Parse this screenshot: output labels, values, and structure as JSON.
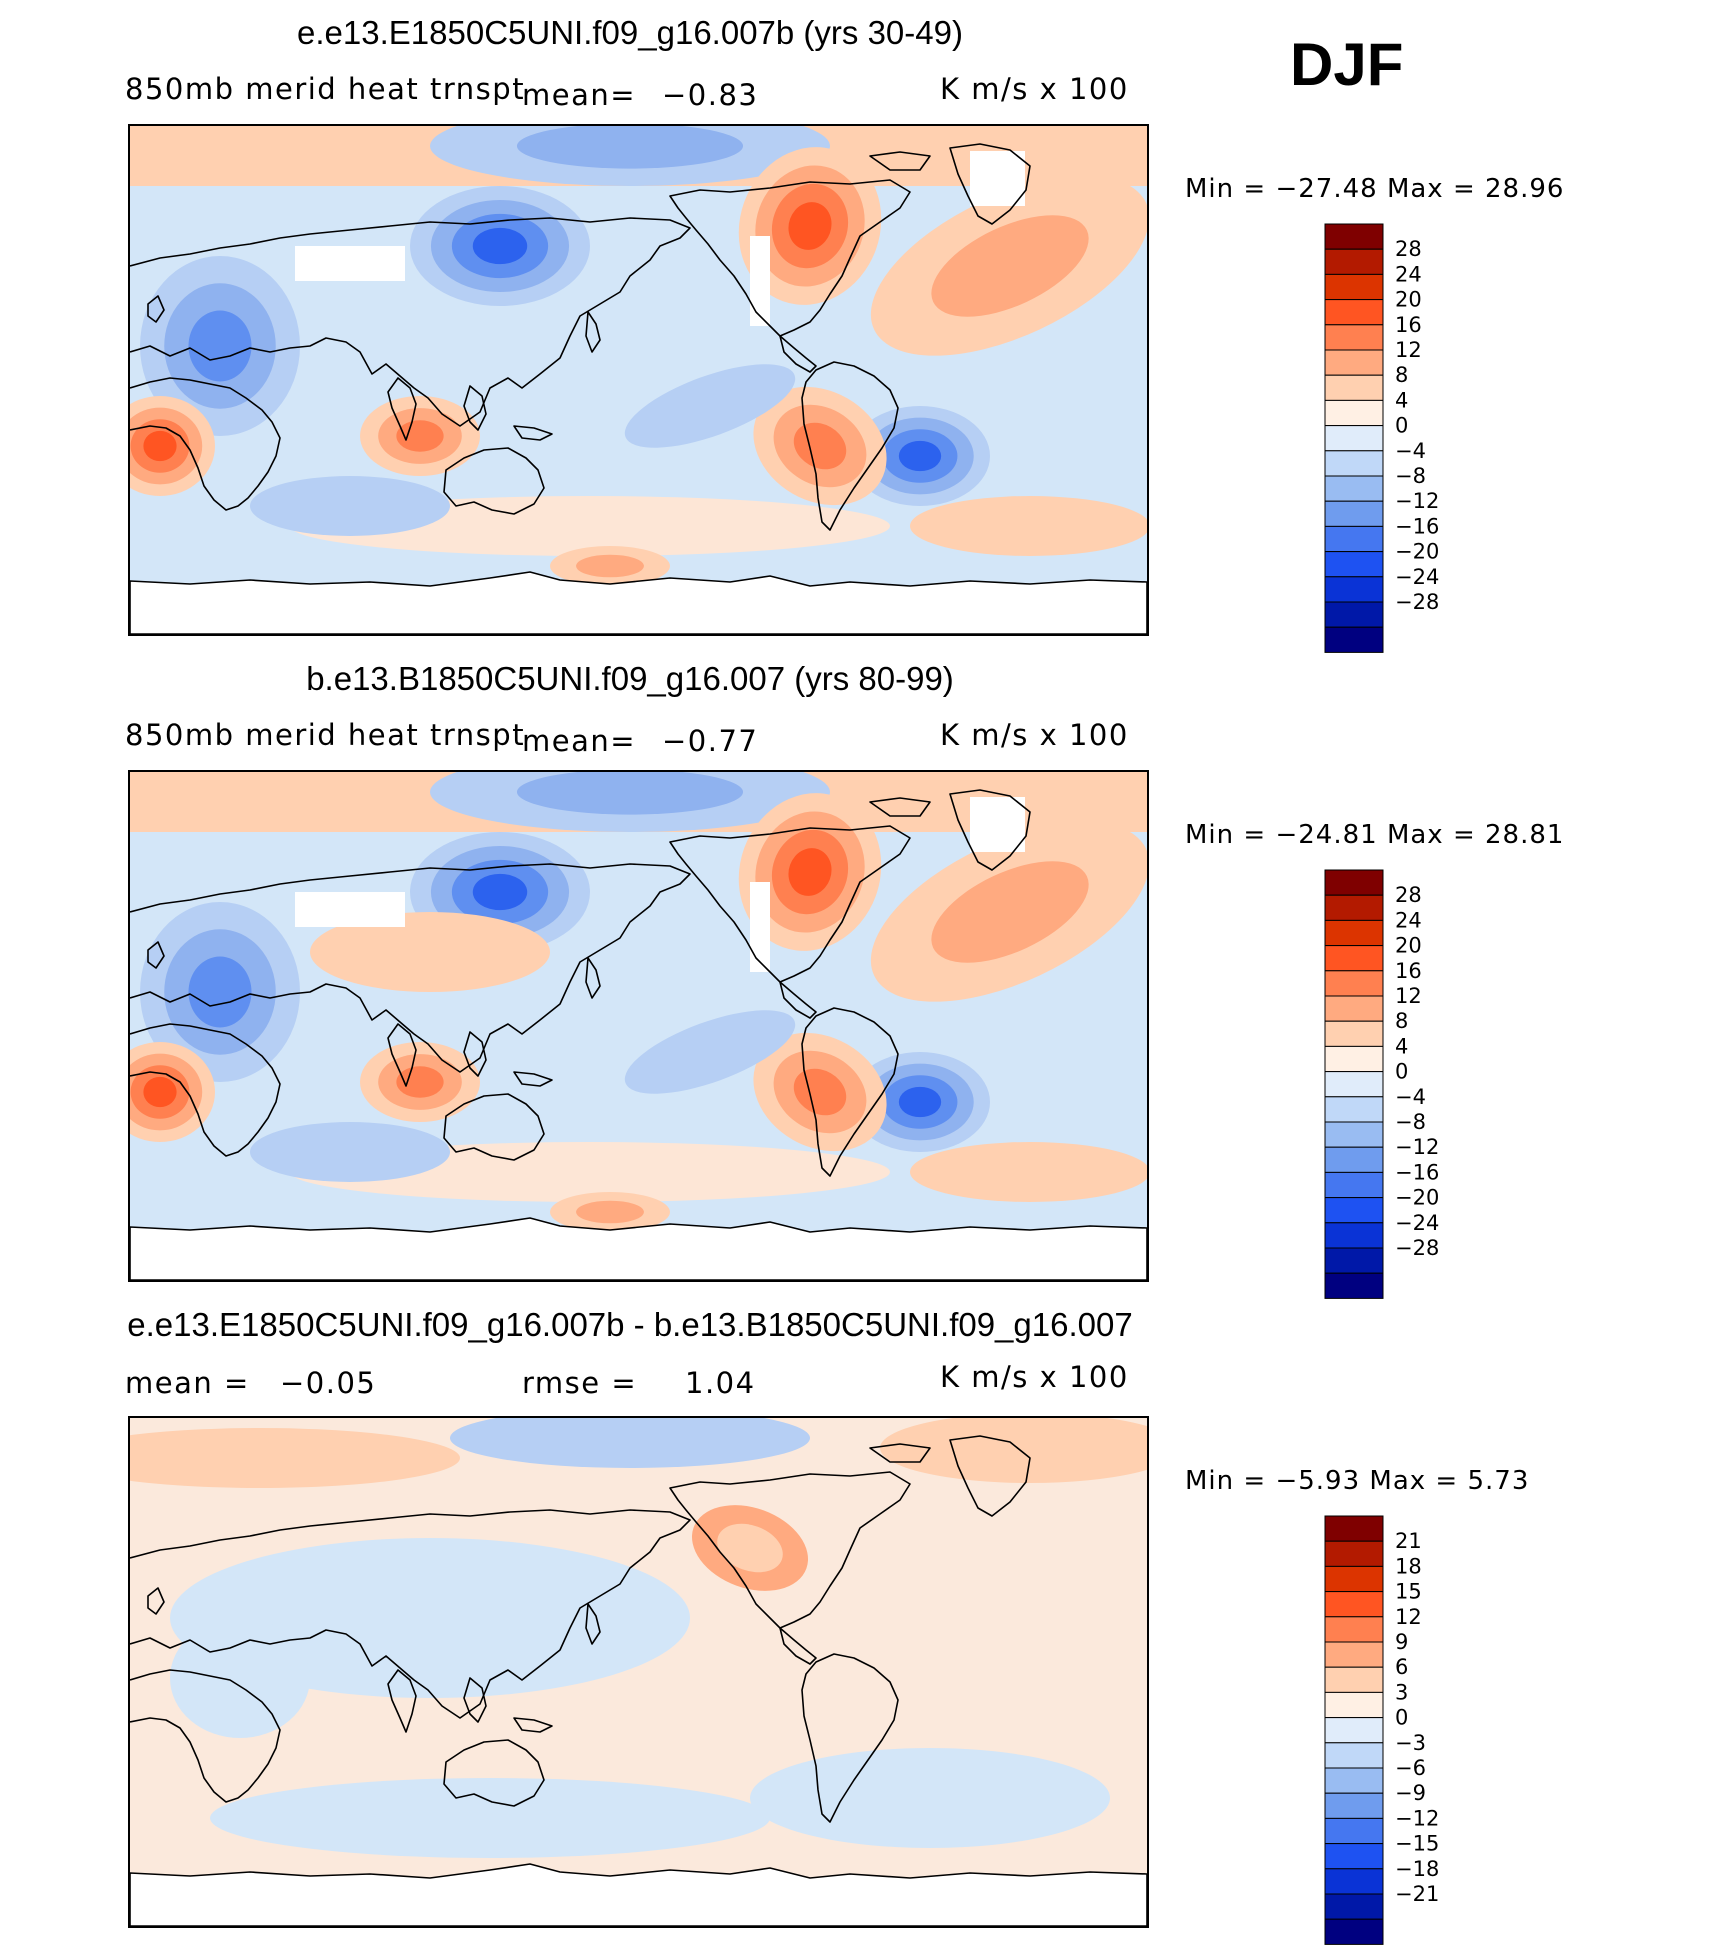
{
  "season": "DJF",
  "units": "K m/s x 100",
  "panels": [
    {
      "id": "top",
      "title": "e.e13.E1850C5UNI.f09_g16.007b (yrs 30-49)",
      "variable": "850mb merid heat trnspt",
      "mean_label": "mean=",
      "mean_value": "−0.83",
      "min_label": "Min =",
      "min_value": "−27.48",
      "max_label": "Max =",
      "max_value": "28.96",
      "legend_colors": [
        "#7f0000",
        "#b31a00",
        "#dc3400",
        "#ff5522",
        "#ff8050",
        "#ffaa80",
        "#ffd0b0",
        "#fff0e4",
        "#e0ecfa",
        "#c0d8f8",
        "#99bcf2",
        "#6f9cee",
        "#4577f0",
        "#1e52f2",
        "#0a33d6",
        "#0018a8",
        "#000080"
      ],
      "legend_labels": [
        "28",
        "24",
        "20",
        "16",
        "12",
        "8",
        "4",
        "0",
        "−4",
        "−8",
        "−12",
        "−16",
        "−20",
        "−24",
        "−28"
      ]
    },
    {
      "id": "middle",
      "title": "b.e13.B1850C5UNI.f09_g16.007 (yrs 80-99)",
      "variable": "850mb merid heat trnspt",
      "mean_label": "mean=",
      "mean_value": "−0.77",
      "min_label": "Min =",
      "min_value": "−24.81",
      "max_label": "Max =",
      "max_value": "28.81",
      "legend_colors": [
        "#7f0000",
        "#b31a00",
        "#dc3400",
        "#ff5522",
        "#ff8050",
        "#ffaa80",
        "#ffd0b0",
        "#fff0e4",
        "#e0ecfa",
        "#c0d8f8",
        "#99bcf2",
        "#6f9cee",
        "#4577f0",
        "#1e52f2",
        "#0a33d6",
        "#0018a8",
        "#000080"
      ],
      "legend_labels": [
        "28",
        "24",
        "20",
        "16",
        "12",
        "8",
        "4",
        "0",
        "−4",
        "−8",
        "−12",
        "−16",
        "−20",
        "−24",
        "−28"
      ]
    },
    {
      "id": "diff",
      "title": "e.e13.E1850C5UNI.f09_g16.007b - b.e13.B1850C5UNI.f09_g16.007",
      "mean_label": "mean =",
      "mean_value": "−0.05",
      "rmse_label": "rmse =",
      "rmse_value": "1.04",
      "min_label": "Min =",
      "min_value": "−5.93",
      "max_label": "Max =",
      "max_value": "5.73",
      "legend_colors": [
        "#7f0000",
        "#b31a00",
        "#dc3400",
        "#ff5522",
        "#ff8050",
        "#ffaa80",
        "#ffd0b0",
        "#fff0e4",
        "#e0ecfa",
        "#c0d8f8",
        "#99bcf2",
        "#6f9cee",
        "#4577f0",
        "#1e52f2",
        "#0a33d6",
        "#0018a8",
        "#000080"
      ],
      "legend_labels": [
        "21",
        "18",
        "15",
        "12",
        "9",
        "6",
        "3",
        "0",
        "−3",
        "−6",
        "−9",
        "−12",
        "−15",
        "−18",
        "−21"
      ]
    }
  ]
}
